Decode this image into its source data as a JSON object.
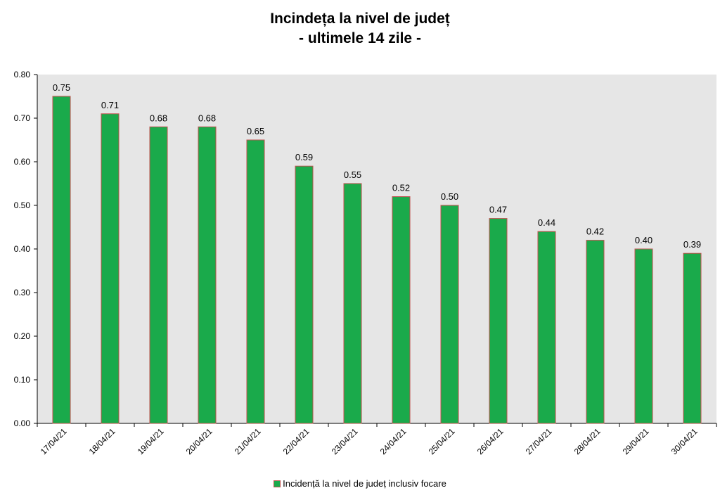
{
  "chart_data": {
    "type": "bar",
    "title": "Incindeța la nivel de județ",
    "subtitle": "- ultimele 14 zile -",
    "categories": [
      "17/04/21",
      "18/04/21",
      "19/04/21",
      "20/04/21",
      "21/04/21",
      "22/04/21",
      "23/04/21",
      "24/04/21",
      "25/04/21",
      "26/04/21",
      "27/04/21",
      "28/04/21",
      "29/04/21",
      "30/04/21"
    ],
    "series": [
      {
        "name": "Incidență la nivel de județ inclusiv focare",
        "values": [
          0.75,
          0.71,
          0.68,
          0.68,
          0.65,
          0.59,
          0.55,
          0.52,
          0.5,
          0.47,
          0.44,
          0.42,
          0.4,
          0.39
        ],
        "data_labels": [
          "0.75",
          "0.71",
          "0.68",
          "0.68",
          "0.65",
          "0.59",
          "0.55",
          "0.52",
          "0.50",
          "0.47",
          "0.44",
          "0.42",
          "0.40",
          "0.39"
        ]
      }
    ],
    "ylim": [
      0,
      0.8
    ],
    "yticks": [
      "0.00",
      "0.10",
      "0.20",
      "0.30",
      "0.40",
      "0.50",
      "0.60",
      "0.70",
      "0.80"
    ],
    "xlabel": "",
    "ylabel": "",
    "grid": false,
    "legend_position": "bottom",
    "colors": {
      "bar_fill": "#1aaa4b",
      "bar_border": "#c0504d",
      "plot_background": "#e6e6e6"
    }
  }
}
